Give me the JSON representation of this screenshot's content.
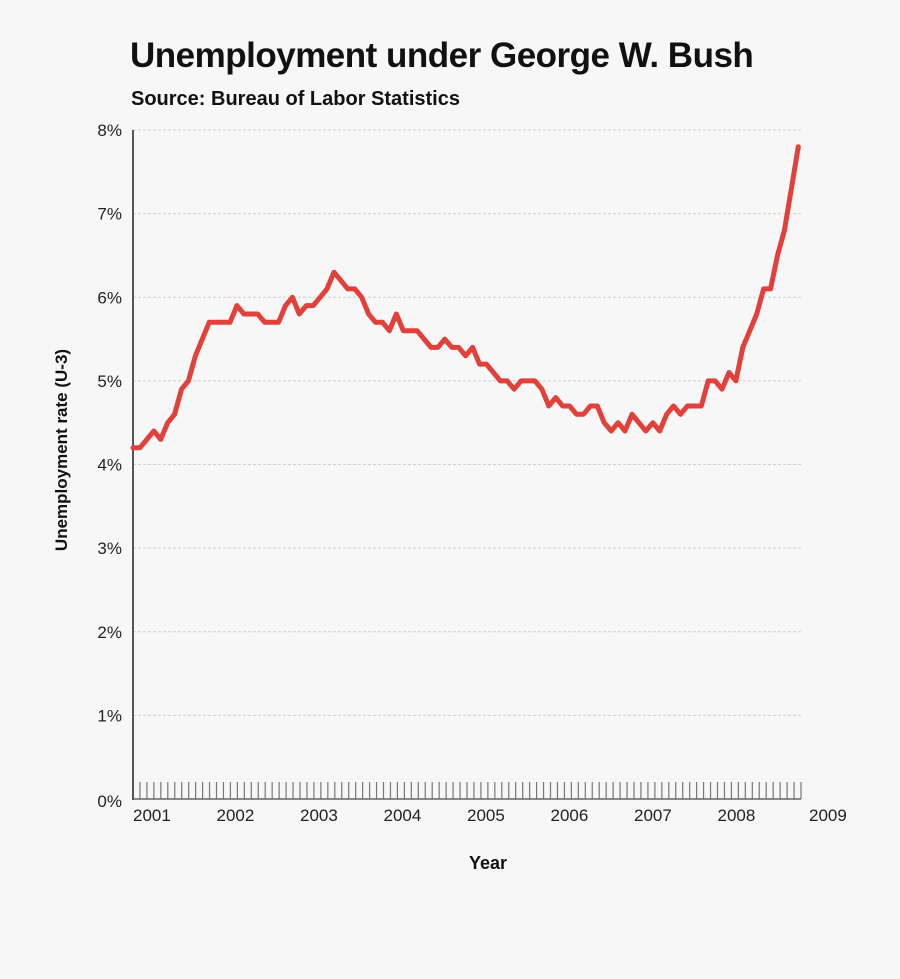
{
  "title": "Unemployment under George W. Bush",
  "subtitle": "Source: Bureau of Labor Statistics",
  "line_color": "#e2403a",
  "chart_data": {
    "type": "line",
    "title": "Unemployment under George W. Bush",
    "subtitle": "Source: Bureau of Labor Statistics",
    "xlabel": "Year",
    "ylabel": "Unemployment rate (U-3)",
    "ylim": [
      0,
      8
    ],
    "yticks": [
      "0%",
      "1%",
      "2%",
      "3%",
      "4%",
      "5%",
      "6%",
      "7%",
      "8%"
    ],
    "xticks": [
      "2001",
      "2002",
      "2003",
      "2004",
      "2005",
      "2006",
      "2007",
      "2008",
      "2009"
    ],
    "grid": "horizontal dotted",
    "legend": "none",
    "x_start": "2001-01",
    "x_step": "month",
    "series": [
      {
        "name": "Unemployment rate (U-3)",
        "values": [
          4.2,
          4.2,
          4.3,
          4.4,
          4.3,
          4.5,
          4.6,
          4.9,
          5.0,
          5.3,
          5.5,
          5.7,
          5.7,
          5.7,
          5.7,
          5.9,
          5.8,
          5.8,
          5.8,
          5.7,
          5.7,
          5.7,
          5.9,
          6.0,
          5.8,
          5.9,
          5.9,
          6.0,
          6.1,
          6.3,
          6.2,
          6.1,
          6.1,
          6.0,
          5.8,
          5.7,
          5.7,
          5.6,
          5.8,
          5.6,
          5.6,
          5.6,
          5.5,
          5.4,
          5.4,
          5.5,
          5.4,
          5.4,
          5.3,
          5.4,
          5.2,
          5.2,
          5.1,
          5.0,
          5.0,
          4.9,
          5.0,
          5.0,
          5.0,
          4.9,
          4.7,
          4.8,
          4.7,
          4.7,
          4.6,
          4.6,
          4.7,
          4.7,
          4.5,
          4.4,
          4.5,
          4.4,
          4.6,
          4.5,
          4.4,
          4.5,
          4.4,
          4.6,
          4.7,
          4.6,
          4.7,
          4.7,
          4.7,
          5.0,
          5.0,
          4.9,
          5.1,
          5.0,
          5.4,
          5.6,
          5.8,
          6.1,
          6.1,
          6.5,
          6.8,
          7.3,
          7.8
        ]
      }
    ]
  }
}
